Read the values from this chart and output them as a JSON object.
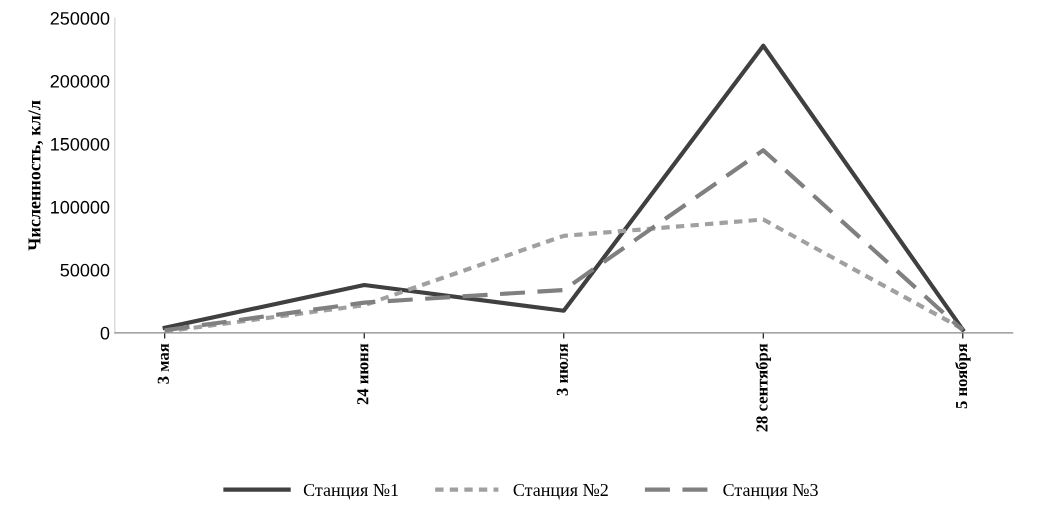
{
  "chart_data": {
    "type": "line",
    "ylabel": "Численность, кл/л",
    "categories": [
      "3 мая",
      "24 июня",
      "3 июля",
      "28 сентября",
      "5 ноября"
    ],
    "series": [
      {
        "name": "Станция №1",
        "color": "#404040",
        "line_style": "solid",
        "values": [
          4000,
          38000,
          17500,
          228000,
          2500
        ]
      },
      {
        "name": "Станция №2",
        "color": "#a0a0a0",
        "line_style": "dotted",
        "values": [
          1000,
          22000,
          77000,
          90000,
          3000
        ]
      },
      {
        "name": "Станция №3",
        "color": "#808080",
        "line_style": "dashed",
        "values": [
          2000,
          24000,
          34000,
          145000,
          2000
        ]
      }
    ],
    "ylim": [
      0,
      250000
    ],
    "yticks": [
      0,
      50000,
      100000,
      150000,
      200000,
      250000
    ],
    "grid": false,
    "legend": "bottom",
    "marker": "none"
  }
}
